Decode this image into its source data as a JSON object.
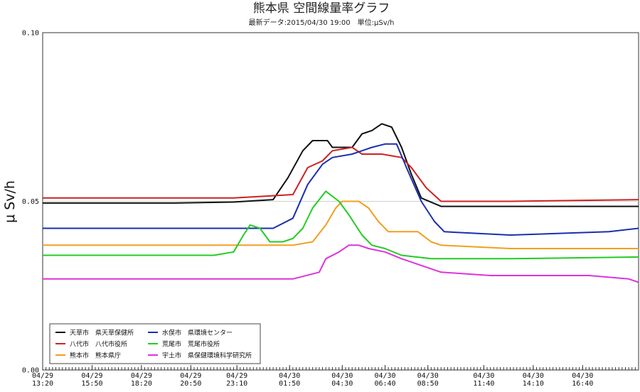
{
  "chart_data": {
    "type": "line",
    "title": "熊本県 空間線量率グラフ",
    "subtitle": "最新データ:2015/04/30 19:00　単位:μSv/h",
    "ylabel": "μ Sv/h",
    "ylim": [
      0,
      0.1
    ],
    "yticks": [
      "0.00",
      "0.05",
      "0.10"
    ],
    "grid": "horizontal-line-at-0.05",
    "legend_placement": "bottom-left",
    "xlim": [
      "2015-04-29 13:20",
      "2015-04-30 19:30"
    ],
    "xticks": [
      {
        "t": "2015-04-29 13:20",
        "l1": "04/29",
        "l2": "13:20"
      },
      {
        "t": "2015-04-29 15:50",
        "l1": "04/29",
        "l2": "15:50"
      },
      {
        "t": "2015-04-29 18:20",
        "l1": "04/29",
        "l2": "18:20"
      },
      {
        "t": "2015-04-29 20:50",
        "l1": "04/29",
        "l2": "20:50"
      },
      {
        "t": "2015-04-29 23:10",
        "l1": "04/29",
        "l2": "23:10"
      },
      {
        "t": "2015-04-30 01:50",
        "l1": "04/30",
        "l2": "01:50"
      },
      {
        "t": "2015-04-30 04:30",
        "l1": "04/30",
        "l2": "04:30"
      },
      {
        "t": "2015-04-30 06:40",
        "l1": "04/30",
        "l2": "06:40"
      },
      {
        "t": "2015-04-30 08:50",
        "l1": "04/30",
        "l2": "08:50"
      },
      {
        "t": "2015-04-30 11:40",
        "l1": "04/30",
        "l2": "11:40"
      },
      {
        "t": "2015-04-30 14:10",
        "l1": "04/30",
        "l2": "14:10"
      },
      {
        "t": "2015-04-30 16:40",
        "l1": "04/30",
        "l2": "16:40"
      }
    ],
    "series": [
      {
        "name": "天草市　県天草保健所",
        "color": "#111111",
        "points": [
          [
            "2015-04-29 13:20",
            0.0495
          ],
          [
            "2015-04-29 16:00",
            0.0495
          ],
          [
            "2015-04-29 20:00",
            0.0495
          ],
          [
            "2015-04-29 23:00",
            0.0498
          ],
          [
            "2015-04-30 01:00",
            0.0505
          ],
          [
            "2015-04-30 01:45",
            0.057
          ],
          [
            "2015-04-30 02:30",
            0.065
          ],
          [
            "2015-04-30 03:00",
            0.068
          ],
          [
            "2015-04-30 03:45",
            0.068
          ],
          [
            "2015-04-30 04:00",
            0.066
          ],
          [
            "2015-04-30 05:00",
            0.066
          ],
          [
            "2015-04-30 05:30",
            0.07
          ],
          [
            "2015-04-30 06:00",
            0.071
          ],
          [
            "2015-04-30 06:30",
            0.073
          ],
          [
            "2015-04-30 07:00",
            0.072
          ],
          [
            "2015-04-30 07:30",
            0.066
          ],
          [
            "2015-04-30 08:00",
            0.058
          ],
          [
            "2015-04-30 08:30",
            0.051
          ],
          [
            "2015-04-30 09:30",
            0.0485
          ],
          [
            "2015-04-30 13:00",
            0.0485
          ],
          [
            "2015-04-30 19:30",
            0.0485
          ]
        ]
      },
      {
        "name": "八代市　八代市役所",
        "color": "#cc2222",
        "points": [
          [
            "2015-04-29 13:20",
            0.051
          ],
          [
            "2015-04-29 18:00",
            0.051
          ],
          [
            "2015-04-29 23:00",
            0.051
          ],
          [
            "2015-04-30 02:00",
            0.052
          ],
          [
            "2015-04-30 02:45",
            0.06
          ],
          [
            "2015-04-30 03:30",
            0.062
          ],
          [
            "2015-04-30 04:00",
            0.065
          ],
          [
            "2015-04-30 05:00",
            0.066
          ],
          [
            "2015-04-30 05:30",
            0.064
          ],
          [
            "2015-04-30 06:30",
            0.064
          ],
          [
            "2015-04-30 07:30",
            0.063
          ],
          [
            "2015-04-30 08:00",
            0.06
          ],
          [
            "2015-04-30 08:45",
            0.054
          ],
          [
            "2015-04-30 09:30",
            0.05
          ],
          [
            "2015-04-30 13:00",
            0.05
          ],
          [
            "2015-04-30 19:30",
            0.0505
          ]
        ]
      },
      {
        "name": "熊本市　熊本県庁",
        "color": "#f0a020",
        "points": [
          [
            "2015-04-29 13:20",
            0.037
          ],
          [
            "2015-04-29 18:00",
            0.037
          ],
          [
            "2015-04-29 23:00",
            0.037
          ],
          [
            "2015-04-30 02:00",
            0.037
          ],
          [
            "2015-04-30 03:00",
            0.038
          ],
          [
            "2015-04-30 03:40",
            0.043
          ],
          [
            "2015-04-30 04:10",
            0.048
          ],
          [
            "2015-04-30 04:30",
            0.05
          ],
          [
            "2015-04-30 05:20",
            0.05
          ],
          [
            "2015-04-30 05:50",
            0.048
          ],
          [
            "2015-04-30 06:20",
            0.044
          ],
          [
            "2015-04-30 06:50",
            0.041
          ],
          [
            "2015-04-30 08:20",
            0.041
          ],
          [
            "2015-04-30 09:00",
            0.038
          ],
          [
            "2015-04-30 09:30",
            0.037
          ],
          [
            "2015-04-30 13:00",
            0.036
          ],
          [
            "2015-04-30 19:30",
            0.036
          ]
        ]
      },
      {
        "name": "水俣市　県環境センター",
        "color": "#1a2fb0",
        "points": [
          [
            "2015-04-29 13:20",
            0.042
          ],
          [
            "2015-04-29 18:00",
            0.042
          ],
          [
            "2015-04-29 23:00",
            0.042
          ],
          [
            "2015-04-30 01:00",
            0.042
          ],
          [
            "2015-04-30 02:00",
            0.045
          ],
          [
            "2015-04-30 02:45",
            0.055
          ],
          [
            "2015-04-30 03:30",
            0.061
          ],
          [
            "2015-04-30 04:00",
            0.063
          ],
          [
            "2015-04-30 05:00",
            0.064
          ],
          [
            "2015-04-30 06:00",
            0.066
          ],
          [
            "2015-04-30 06:40",
            0.067
          ],
          [
            "2015-04-30 07:15",
            0.067
          ],
          [
            "2015-04-30 07:45",
            0.06
          ],
          [
            "2015-04-30 08:30",
            0.05
          ],
          [
            "2015-04-30 09:10",
            0.044
          ],
          [
            "2015-04-30 09:40",
            0.041
          ],
          [
            "2015-04-30 13:00",
            0.04
          ],
          [
            "2015-04-30 18:00",
            0.041
          ],
          [
            "2015-04-30 19:30",
            0.042
          ]
        ]
      },
      {
        "name": "荒尾市　荒尾市役所",
        "color": "#22cc22",
        "points": [
          [
            "2015-04-29 13:20",
            0.034
          ],
          [
            "2015-04-29 18:00",
            0.034
          ],
          [
            "2015-04-29 22:00",
            0.034
          ],
          [
            "2015-04-29 23:00",
            0.035
          ],
          [
            "2015-04-29 23:30",
            0.04
          ],
          [
            "2015-04-29 23:50",
            0.043
          ],
          [
            "2015-04-30 00:20",
            0.042
          ],
          [
            "2015-04-30 00:50",
            0.038
          ],
          [
            "2015-04-30 01:30",
            0.038
          ],
          [
            "2015-04-30 02:00",
            0.039
          ],
          [
            "2015-04-30 02:30",
            0.042
          ],
          [
            "2015-04-30 03:00",
            0.048
          ],
          [
            "2015-04-30 03:40",
            0.053
          ],
          [
            "2015-04-30 04:20",
            0.05
          ],
          [
            "2015-04-30 04:50",
            0.046
          ],
          [
            "2015-04-30 05:30",
            0.04
          ],
          [
            "2015-04-30 06:00",
            0.037
          ],
          [
            "2015-04-30 06:40",
            0.036
          ],
          [
            "2015-04-30 07:30",
            0.034
          ],
          [
            "2015-04-30 09:00",
            0.033
          ],
          [
            "2015-04-30 13:00",
            0.033
          ],
          [
            "2015-04-30 19:30",
            0.0335
          ]
        ]
      },
      {
        "name": "宇土市　県保健環境科学研究所",
        "color": "#dd33dd",
        "points": [
          [
            "2015-04-29 13:20",
            0.027
          ],
          [
            "2015-04-29 18:00",
            0.027
          ],
          [
            "2015-04-29 23:00",
            0.027
          ],
          [
            "2015-04-30 02:00",
            0.027
          ],
          [
            "2015-04-30 03:20",
            0.029
          ],
          [
            "2015-04-30 03:40",
            0.033
          ],
          [
            "2015-04-30 04:20",
            0.035
          ],
          [
            "2015-04-30 04:50",
            0.037
          ],
          [
            "2015-04-30 05:20",
            0.037
          ],
          [
            "2015-04-30 05:50",
            0.036
          ],
          [
            "2015-04-30 06:40",
            0.035
          ],
          [
            "2015-04-30 07:30",
            0.033
          ],
          [
            "2015-04-30 08:30",
            0.031
          ],
          [
            "2015-04-30 09:30",
            0.029
          ],
          [
            "2015-04-30 12:00",
            0.028
          ],
          [
            "2015-04-30 17:00",
            0.028
          ],
          [
            "2015-04-30 19:00",
            0.027
          ],
          [
            "2015-04-30 19:30",
            0.026
          ]
        ]
      }
    ]
  }
}
